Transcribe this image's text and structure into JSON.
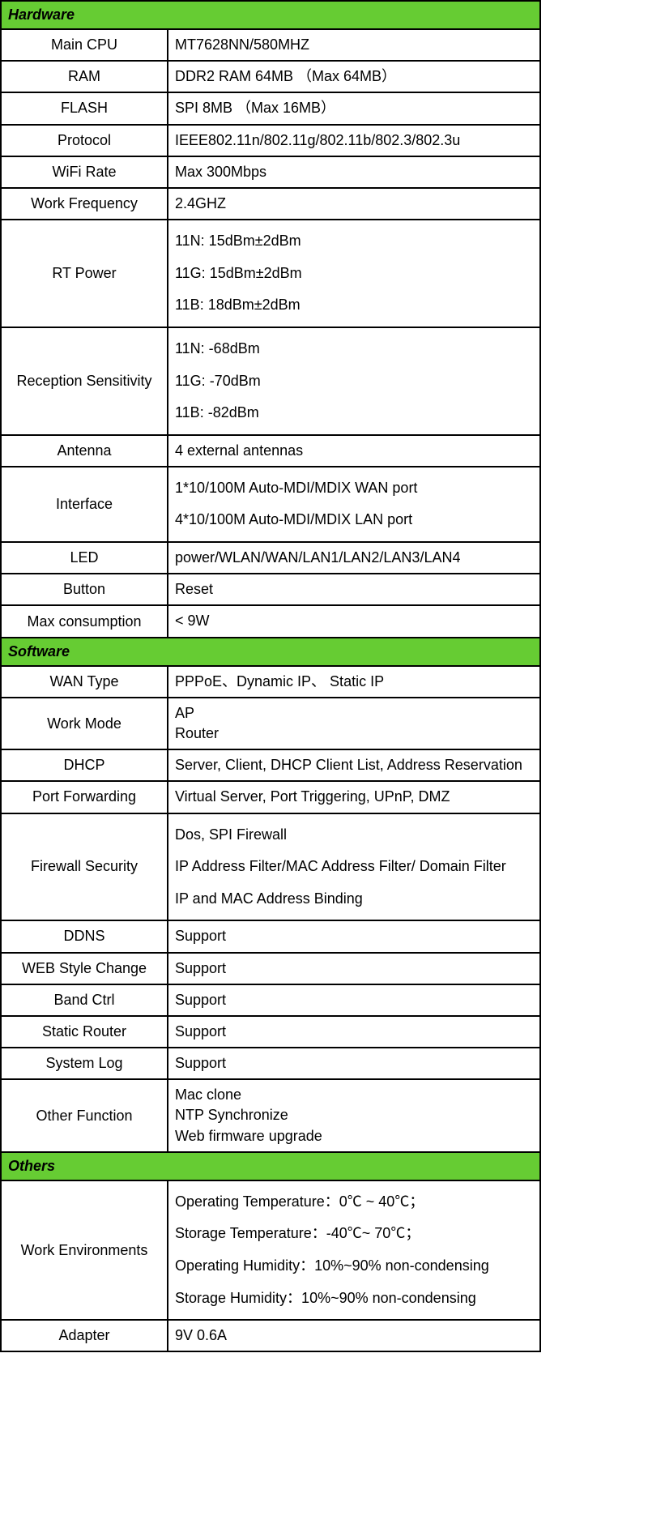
{
  "colors": {
    "header_bg": "#66cc33",
    "border": "#000000",
    "text": "#000000",
    "bg": "#ffffff"
  },
  "sections": {
    "hardware": {
      "title": "Hardware",
      "rows": {
        "main_cpu": {
          "label": "Main CPU",
          "value": "MT7628NN/580MHZ"
        },
        "ram": {
          "label": "RAM",
          "value": "DDR2 RAM 64MB （Max 64MB）"
        },
        "flash": {
          "label": "FLASH",
          "value": "SPI 8MB （Max 16MB）"
        },
        "protocol": {
          "label": "Protocol",
          "value": "IEEE802.11n/802.11g/802.11b/802.3/802.3u"
        },
        "wifi_rate": {
          "label": "WiFi Rate",
          "value": "Max 300Mbps"
        },
        "work_freq": {
          "label": "Work Frequency",
          "value": "2.4GHZ"
        },
        "rt_power": {
          "label": "RT Power",
          "l1": "11N: 15dBm±2dBm",
          "l2": "11G: 15dBm±2dBm",
          "l3": "11B: 18dBm±2dBm"
        },
        "reception": {
          "label": "Reception Sensitivity",
          "l1": "11N: -68dBm",
          "l2": "11G: -70dBm",
          "l3": "11B: -82dBm"
        },
        "antenna": {
          "label": "Antenna",
          "value": "4 external antennas"
        },
        "interface": {
          "label": "Interface",
          "l1": "1*10/100M Auto-MDI/MDIX WAN port",
          "l2": "4*10/100M Auto-MDI/MDIX LAN port"
        },
        "led": {
          "label": "LED",
          "value": "power/WLAN/WAN/LAN1/LAN2/LAN3/LAN4"
        },
        "button": {
          "label": "Button",
          "value": "Reset"
        },
        "max_cons": {
          "label": "Max consumption",
          "value": "< 9W"
        }
      }
    },
    "software": {
      "title": "Software",
      "rows": {
        "wan_type": {
          "label": "WAN Type",
          "value": "PPPoE、Dynamic IP、 Static IP"
        },
        "work_mode": {
          "label": "Work Mode",
          "l1": "AP",
          "l2": "Router"
        },
        "dhcp": {
          "label": "DHCP",
          "value": "Server, Client, DHCP Client List, Address Reservation"
        },
        "port_fwd": {
          "label": "Port Forwarding",
          "value": "Virtual Server, Port Triggering, UPnP, DMZ"
        },
        "firewall": {
          "label": "Firewall Security",
          "l1": "Dos, SPI Firewall",
          "l2": "IP Address Filter/MAC Address Filter/ Domain Filter",
          "l3": "IP and MAC Address Binding"
        },
        "ddns": {
          "label": "DDNS",
          "value": "Support"
        },
        "web_style": {
          "label": "WEB Style Change",
          "value": "Support"
        },
        "band_ctrl": {
          "label": "Band Ctrl",
          "value": "Support"
        },
        "static_router": {
          "label": "Static Router",
          "value": "Support"
        },
        "system_log": {
          "label": "System Log",
          "value": "Support"
        },
        "other_func": {
          "label": "Other Function",
          "l1": "Mac clone",
          "l2": "NTP Synchronize",
          "l3": "Web firmware upgrade"
        }
      }
    },
    "others": {
      "title": "Others",
      "rows": {
        "work_env": {
          "label": "Work Environments",
          "l1": "Operating Temperature：0℃ ~ 40℃；",
          "l2": "Storage Temperature：-40℃~ 70℃；",
          "l3": "Operating Humidity：10%~90% non-condensing",
          "l4": "Storage Humidity：10%~90% non-condensing"
        },
        "adapter": {
          "label": "Adapter",
          "value": "9V   0.6A"
        }
      }
    }
  }
}
